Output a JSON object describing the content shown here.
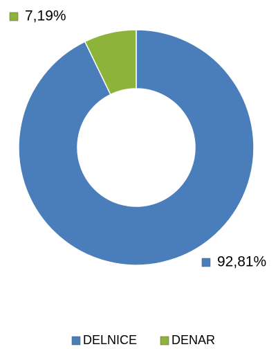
{
  "chart_data": {
    "type": "donut",
    "categories": [
      "DELNICE",
      "DENAR"
    ],
    "values": [
      92.81,
      7.19
    ],
    "value_labels": [
      "92,81%",
      "7,19%"
    ],
    "colors": [
      "#4a7ebb",
      "#8db33a"
    ]
  }
}
